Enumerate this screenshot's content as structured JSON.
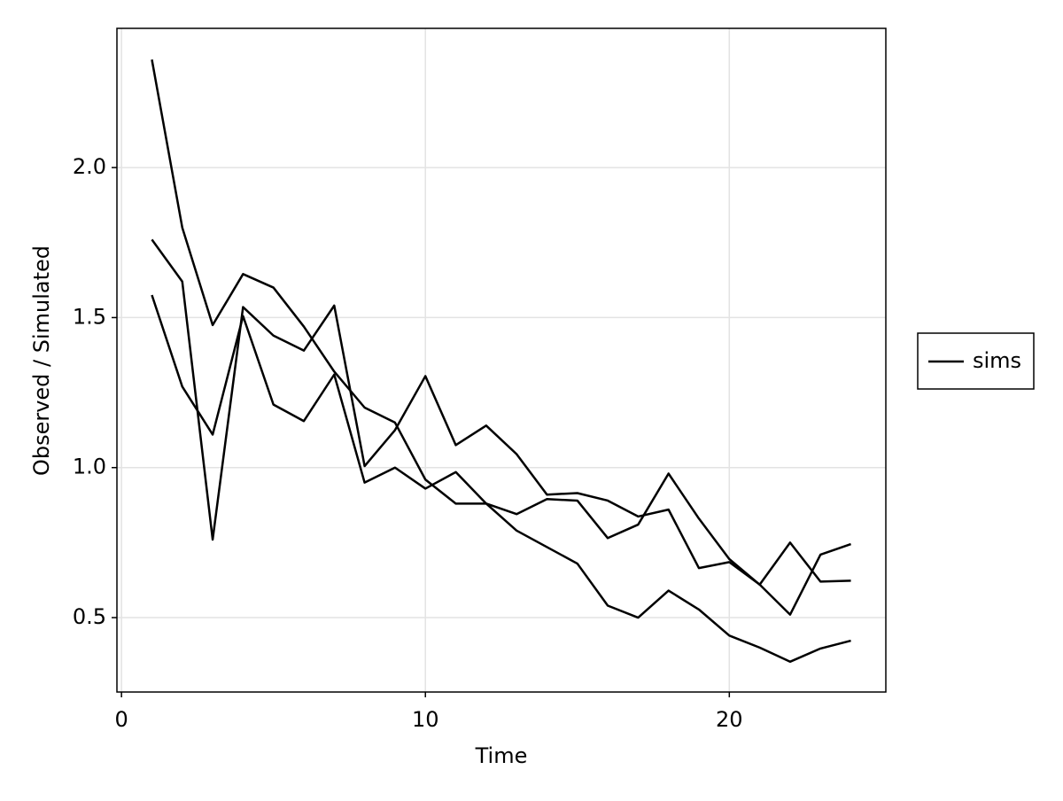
{
  "chart_data": {
    "type": "line",
    "xlabel": "Time",
    "ylabel": "Observed / Simulated",
    "x": [
      1,
      2,
      3,
      4,
      5,
      6,
      7,
      8,
      9,
      10,
      11,
      12,
      13,
      14,
      15,
      16,
      17,
      18,
      19,
      20,
      21,
      22,
      23,
      24
    ],
    "series": [
      {
        "name": "sims",
        "color": "#000000",
        "values": [
          2.36,
          1.8,
          1.475,
          1.645,
          1.6,
          1.47,
          1.32,
          1.2,
          1.15,
          0.96,
          0.88,
          0.88,
          0.79,
          0.735,
          0.68,
          0.54,
          0.5,
          0.59,
          0.527,
          0.44,
          0.4,
          0.353,
          0.397,
          0.423
        ]
      },
      {
        "color": "#000000",
        "values": [
          1.76,
          1.62,
          0.76,
          1.535,
          1.44,
          1.39,
          1.54,
          1.005,
          1.125,
          1.305,
          1.075,
          1.14,
          1.045,
          0.91,
          0.915,
          0.89,
          0.837,
          0.86,
          0.665,
          0.685,
          0.61,
          0.51,
          0.71,
          0.745
        ]
      },
      {
        "color": "#000000",
        "values": [
          1.575,
          1.27,
          1.11,
          1.505,
          1.21,
          1.155,
          1.31,
          0.95,
          1.0,
          0.93,
          0.985,
          0.88,
          0.845,
          0.895,
          0.89,
          0.765,
          0.81,
          0.98,
          0.83,
          0.695,
          0.61,
          0.75,
          0.62,
          0.623
        ]
      }
    ],
    "xlim": [
      -0.15,
      25.15
    ],
    "xticks": [
      0,
      10,
      20
    ],
    "ylim": [
      0.252,
      2.464
    ],
    "yticks": [
      0.5,
      {
        "value": 1,
        "label": "1.0"
      },
      1.5,
      {
        "value": 2,
        "label": "2.0"
      }
    ],
    "grid": true,
    "legend": "right"
  }
}
